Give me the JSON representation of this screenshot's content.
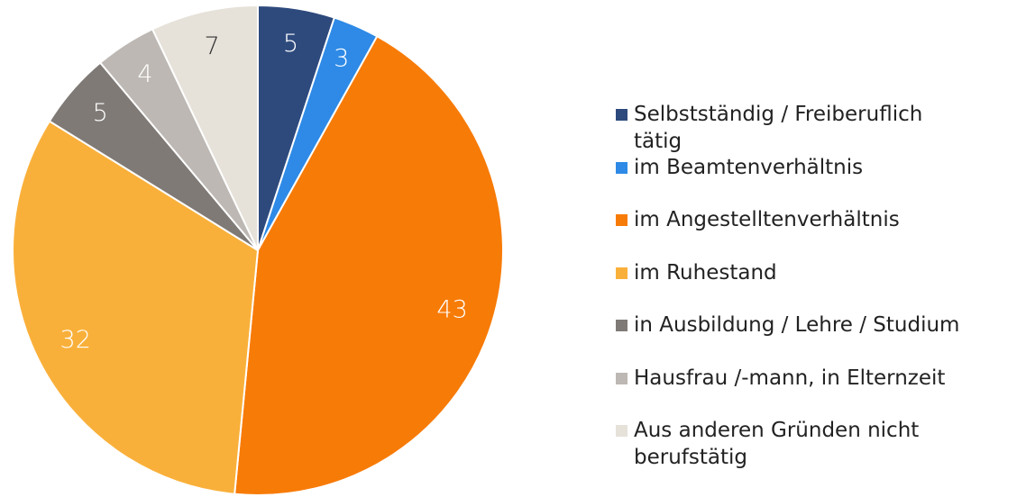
{
  "chart_data": {
    "type": "pie",
    "categories": [
      "Selbstständig / Freiberuflich tätig",
      "im Beamtenverhältnis",
      "im Angestelltenverhältnis",
      "im Ruhestand",
      "in Ausbildung / Lehre / Studium",
      "Hausfrau /-mann, in Elternzeit",
      "Aus anderen Gründen nicht berufstätig"
    ],
    "values": [
      5,
      3,
      43,
      32,
      5,
      4,
      7
    ],
    "colors": [
      "#2e4a7d",
      "#2e8ae6",
      "#f77b07",
      "#f9b03a",
      "#7f7a76",
      "#bdb8b3",
      "#e6e1d9"
    ],
    "label_colors": [
      "#ffffff",
      "#ffffff",
      "#ffffff",
      "#ffffff",
      "#ffffff",
      "#ffffff",
      "#333333"
    ],
    "legend": "right"
  }
}
